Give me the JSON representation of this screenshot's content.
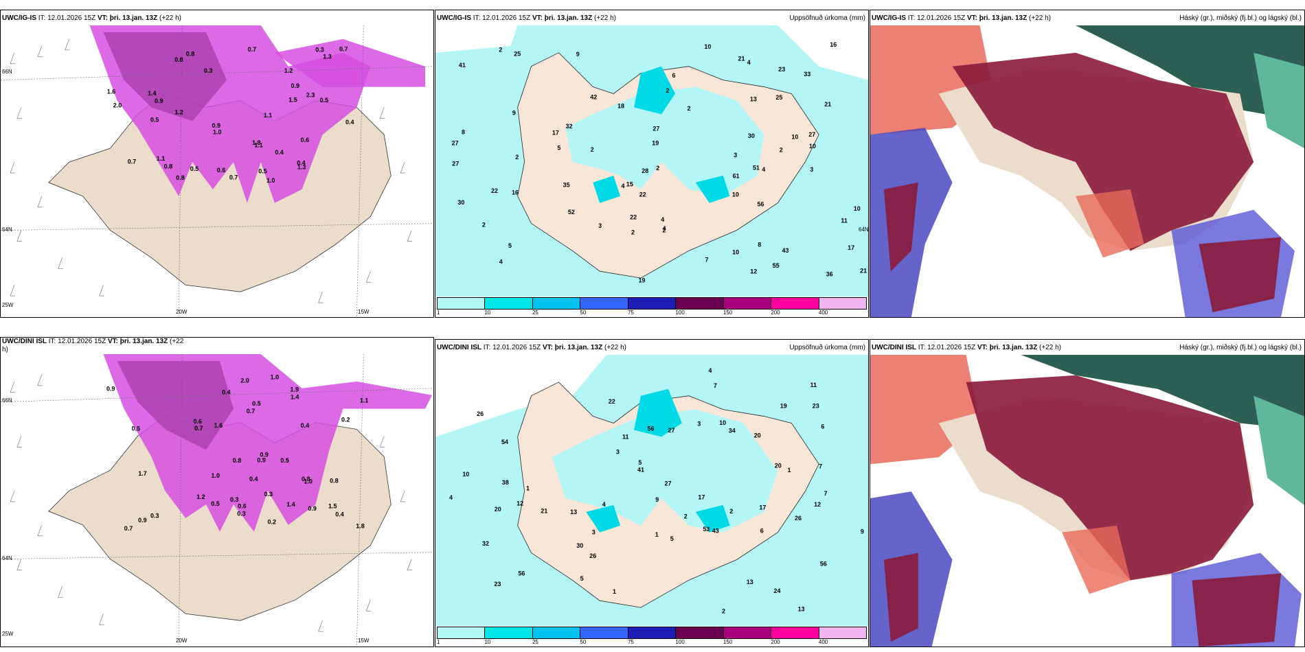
{
  "colorbar": {
    "labels": [
      "1",
      "10",
      "25",
      "50",
      "75",
      "100",
      "150",
      "200",
      "400"
    ],
    "colors": [
      "#b3f7f7",
      "#00e6e6",
      "#00c3ee",
      "#3366ff",
      "#1e1eb4",
      "#6b0050",
      "#aa0080",
      "#ff00a0",
      "#f0b4f0"
    ]
  },
  "rows": [
    {
      "panel_wind": {
        "model": "UWC/IG-IS",
        "it_label": "IT:",
        "it_value": "12.01.2026 15Z",
        "vt_label": "VT:",
        "vt_value": "þri. 13.jan. 13Z",
        "lead": "(+22 h)",
        "lat_labels": [
          "66N",
          "64N",
          "25W"
        ],
        "lon_labels": [
          "20W",
          "15W"
        ],
        "values": [
          "1.0",
          "0.8",
          "1.1",
          "1.4",
          "2.3",
          "0.5",
          "0.4",
          "1.2",
          "1.0",
          "0.8",
          "0.7",
          "1.6",
          "0.9",
          "1.8",
          "1.5",
          "0.3",
          "2.0",
          "1.3",
          "0.6",
          "0.5",
          "0.4",
          "1.1",
          "0.8",
          "1.3",
          "1.1",
          "0.9",
          "0.5",
          "0.9",
          "0.7",
          "0.3",
          "0.4",
          "0.7",
          "1.2",
          "0.5",
          "0.8",
          "0.6",
          "0.7"
        ]
      },
      "panel_precip": {
        "model": "UWC/IG-IS",
        "it_label": "IT:",
        "it_value": "12.01.2026 15Z",
        "vt_label": "VT:",
        "vt_value": "þri. 13.jan. 13Z",
        "lead": "(+22 h)",
        "title_right": "Uppsöfnuð úrkoma (mm)",
        "lat_label": "64N",
        "values": [
          "10",
          "10",
          "10",
          "11",
          "10",
          "25",
          "27",
          "27",
          "17",
          "55",
          "51",
          "61",
          "30",
          "56",
          "52",
          "36",
          "33",
          "22",
          "23",
          "18",
          "22",
          "27",
          "30",
          "21",
          "10",
          "5",
          "9",
          "13",
          "21",
          "16",
          "21",
          "10",
          "8",
          "8",
          "2",
          "4",
          "2",
          "2",
          "4",
          "12",
          "15",
          "35",
          "6",
          "19",
          "27",
          "42",
          "16",
          "32",
          "28",
          "25",
          "22",
          "17",
          "19",
          "43",
          "41",
          "5",
          "4",
          "2",
          "2",
          "4",
          "3",
          "2",
          "2",
          "7",
          "2",
          "2",
          "3",
          "3",
          "4",
          "4",
          "9",
          "2"
        ]
      },
      "panel_cloud": {
        "model": "UWC/IG-IS",
        "it_label": "IT:",
        "it_value": "12.01.2026 15Z",
        "vt_label": "VT:",
        "vt_value": "þri. 13.jan. 13Z",
        "lead": "(+22 h)",
        "title_right": "Háský (gr.), miðský (fj.bl.) og lágský (bl.)"
      }
    },
    {
      "panel_wind": {
        "model": "UWC/DINI ISL",
        "it_label": "IT:",
        "it_value": "12.01.2026 15Z",
        "vt_label": "VT:",
        "vt_value": "þri. 13.jan. 13Z",
        "lead": "(+22",
        "lead2": "h)",
        "lat_labels": [
          "66N",
          "64N",
          "25W"
        ],
        "lon_labels": [
          "20W",
          "15W"
        ],
        "values": [
          "0.9",
          "0.8",
          "0.9",
          "0.4",
          "0.4",
          "1.0",
          "1.5",
          "1.9",
          "0.9",
          "1.2",
          "1.8",
          "0.7",
          "0.5",
          "2.0",
          "1.4",
          "0.6",
          "0.8",
          "1.7",
          "0.8",
          "1.1",
          "0.9",
          "0.3",
          "0.3",
          "0.5",
          "1.0",
          "1.4",
          "1.6",
          "0.7",
          "0.2",
          "0.3",
          "0.4",
          "1.0",
          "0.5",
          "0.7",
          "0.9",
          "0.2",
          "0.6",
          "0.4",
          "0.5",
          "0.3"
        ]
      },
      "panel_precip": {
        "model": "UWC/DINI ISL",
        "it_label": "IT:",
        "it_value": "12.01.2026 15Z",
        "vt_label": "VT:",
        "vt_value": "þri. 13.jan. 13Z",
        "lead": "(+22 h)",
        "title_right": "Uppsöfnuð úrkoma (mm)",
        "values": [
          "13",
          "12",
          "53",
          "26",
          "56",
          "54",
          "56",
          "13",
          "20",
          "56",
          "34",
          "24",
          "26",
          "22",
          "17",
          "32",
          "17",
          "27",
          "10",
          "23",
          "11",
          "27",
          "20",
          "9",
          "7",
          "38",
          "21",
          "9",
          "41",
          "23",
          "43",
          "20",
          "30",
          "10",
          "11",
          "26",
          "12",
          "13",
          "19",
          "2",
          "3",
          "5",
          "5",
          "4",
          "4",
          "1",
          "6",
          "7",
          "3",
          "1",
          "2",
          "7",
          "6",
          "1",
          "3",
          "4",
          "1",
          "5",
          "2"
        ]
      },
      "panel_cloud": {
        "model": "UWC/DINI ISL",
        "it_label": "IT:",
        "it_value": "12.01.2026 15Z",
        "vt_label": "VT:",
        "vt_value": "þri. 13.jan. 13Z",
        "lead": "(+22 h)",
        "title_right": "Háský (gr.), miðský (fj.bl.) og lágský (bl.)"
      }
    }
  ]
}
